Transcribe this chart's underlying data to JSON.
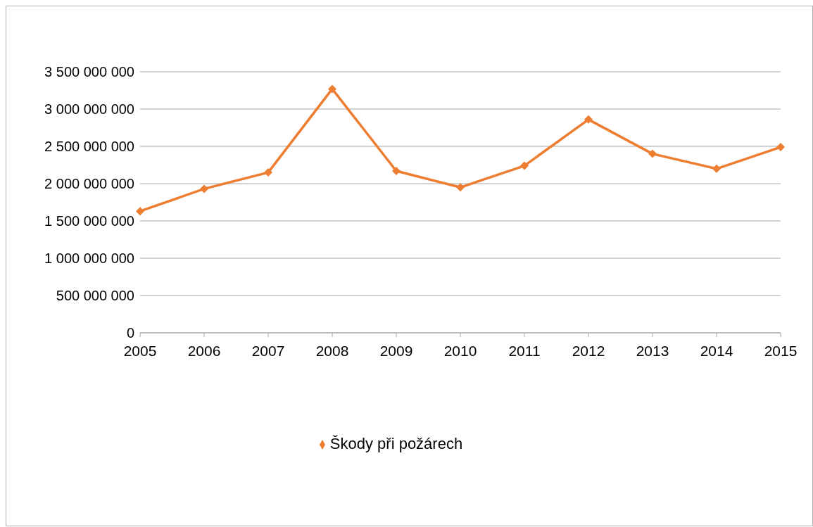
{
  "chart_data": {
    "type": "line",
    "categories": [
      "2005",
      "2006",
      "2007",
      "2008",
      "2009",
      "2010",
      "2011",
      "2012",
      "2013",
      "2014",
      "2015"
    ],
    "series": [
      {
        "name": "Škody při požárech",
        "color": "#ed7d31",
        "values": [
          1630000000,
          1930000000,
          2150000000,
          3270000000,
          2170000000,
          1950000000,
          2240000000,
          2860000000,
          2400000000,
          2200000000,
          2490000000
        ]
      }
    ],
    "ylim": [
      0,
      3500000000
    ],
    "yticks": [
      0,
      {
        "value": 500000000,
        "label": "500 000 000"
      },
      {
        "value": 1000000000,
        "label": "1 000 000 000"
      },
      {
        "value": 1500000000,
        "label": "1 500 000 000"
      },
      {
        "value": 2000000000,
        "label": "2 000 000 000"
      },
      {
        "value": 2500000000,
        "label": "2 500 000 000"
      },
      {
        "value": 3000000000,
        "label": "3 000 000 000"
      },
      {
        "value": 3500000000,
        "label": "3 500 000 000"
      }
    ],
    "grid": "y",
    "legend": "bottom",
    "marker": "diamond",
    "line_style": "solid"
  }
}
